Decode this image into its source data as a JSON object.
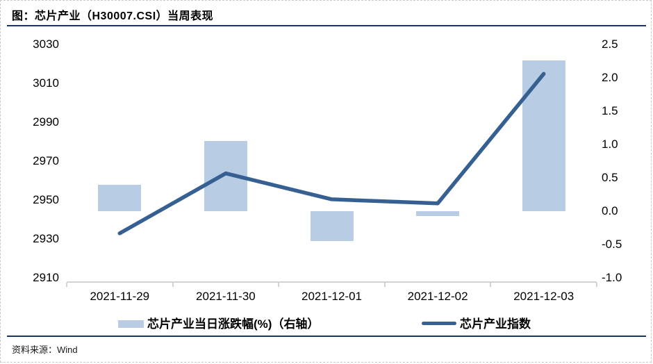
{
  "page": {
    "title": "图：芯片产业（H30007.CSI）当周表现",
    "source_label": "资料来源：Wind"
  },
  "colors": {
    "bar": "#b8cce4",
    "line": "#376092",
    "value_label": "#ff0000",
    "rule": "#17375e",
    "axis": "#d3d3d3"
  },
  "chart_data": {
    "type": "bar",
    "subtype": "combo-bar-line-dual-axis",
    "title": "图：芯片产业（H30007.CSI）当周表现",
    "categories": [
      "2021-11-29",
      "2021-11-30",
      "2021-12-01",
      "2021-12-02",
      "2021-12-03"
    ],
    "series": [
      {
        "name": "芯片产业当日涨跌幅(%)（右轴）",
        "type": "bar",
        "axis": "right",
        "values": [
          0.4,
          1.05,
          -0.45,
          -0.07,
          2.26
        ],
        "labels": [
          "0.40",
          "1.05",
          "-0.45",
          "-0.07",
          "2.26"
        ],
        "label_color": "#ff0000"
      },
      {
        "name": "芯片产业指数",
        "type": "line",
        "axis": "left",
        "values": [
          2932.9,
          2963.7,
          2950.4,
          2948.3,
          3014.9
        ]
      }
    ],
    "left_axis": {
      "min": 2910,
      "max": 3030,
      "ticks": [
        "3030",
        "3010",
        "2990",
        "2970",
        "2950",
        "2930",
        "2910"
      ]
    },
    "right_axis": {
      "min": -1.0,
      "max": 2.5,
      "ticks": [
        "2.5",
        "2.0",
        "1.5",
        "1.0",
        "0.5",
        "0.0",
        "-0.5",
        "-1.0"
      ]
    },
    "grid": false,
    "legend_position": "bottom",
    "source": "资料来源：Wind"
  }
}
